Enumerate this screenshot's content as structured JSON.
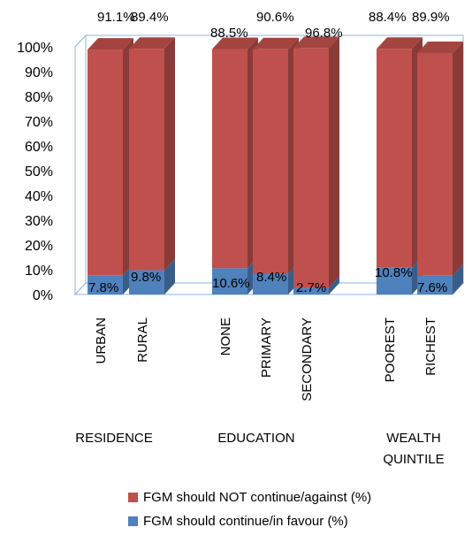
{
  "chart_data": {
    "type": "bar",
    "stacked": true,
    "three_d": true,
    "percent_axis": true,
    "ylim": [
      0,
      100
    ],
    "yticks": [
      "0%",
      "10%",
      "20%",
      "30%",
      "40%",
      "50%",
      "60%",
      "70%",
      "80%",
      "90%",
      "100%"
    ],
    "categories": [
      "URBAN",
      "RURAL",
      "NONE",
      "PRIMARY",
      "SECONDARY",
      "POOREST",
      "RICHEST"
    ],
    "groups": [
      {
        "label": "RESIDENCE",
        "categories": [
          "URBAN",
          "RURAL"
        ]
      },
      {
        "label": "EDUCATION",
        "categories": [
          "NONE",
          "PRIMARY",
          "SECONDARY"
        ]
      },
      {
        "label": "WEALTH QUINTILE",
        "label_lines": [
          "WEALTH",
          "QUINTILE"
        ],
        "categories": [
          "POOREST",
          "RICHEST"
        ]
      }
    ],
    "series": [
      {
        "name": "FGM should continue/in favour (%)",
        "color": "#4f81bd",
        "values": [
          7.8,
          9.8,
          10.6,
          8.4,
          2.7,
          10.8,
          7.6
        ],
        "labels": [
          "7.8%",
          "9.8%",
          "10.6%",
          "8.4%",
          "2.7%",
          "10.8%",
          "7.6%"
        ]
      },
      {
        "name": "FGM should NOT continue/against (%)",
        "color": "#c0504d",
        "values": [
          91.1,
          89.4,
          88.5,
          90.6,
          96.8,
          88.4,
          89.9
        ],
        "labels": [
          "91.1%",
          "89.4%",
          "88.5%",
          "90.6%",
          "96.8%",
          "88.4%",
          "89.9%"
        ]
      }
    ],
    "legend": {
      "position": "bottom",
      "entries": [
        {
          "label": "FGM should NOT continue/against (%)",
          "color": "#c0504d"
        },
        {
          "label": "FGM should continue/in favour (%)",
          "color": "#4f81bd"
        }
      ]
    },
    "grid": false
  }
}
